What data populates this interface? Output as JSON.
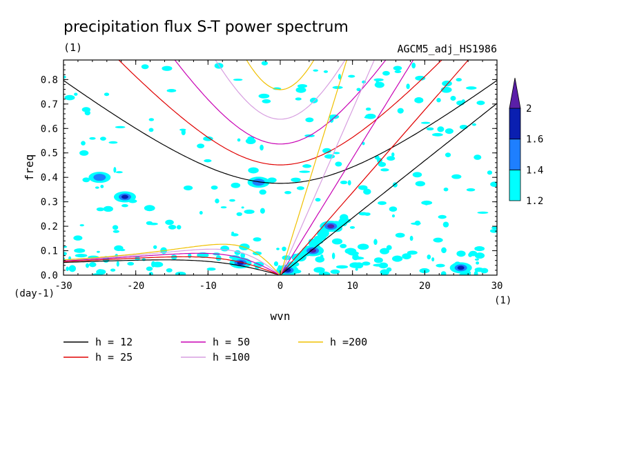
{
  "chart_data": {
    "type": "heatmap",
    "title": "precipitation flux S-T power spectrum",
    "subtitle_left": "(1)",
    "subtitle_right": "AGCM5_adj_HS1986",
    "xlabel": "wvn",
    "ylabel": "freq",
    "x_unit": "(1)",
    "y_unit": "(day-1)",
    "xlim": [
      -30,
      30
    ],
    "ylim": [
      0,
      0.88
    ],
    "xticks": [
      -30,
      -20,
      -10,
      0,
      10,
      20,
      30
    ],
    "xtick_labels": [
      "-30",
      "-20",
      "-10",
      "0",
      "10",
      "20",
      "30"
    ],
    "yticks": [
      0,
      0.1,
      0.2,
      0.3,
      0.4,
      0.5,
      0.6,
      0.7,
      0.8
    ],
    "ytick_labels": [
      "0.0",
      "0.1",
      "0.2",
      "0.3",
      "0.4",
      "0.5",
      "0.6",
      "0.7",
      "0.8"
    ],
    "colorbar": {
      "levels": [
        1.2,
        1.4,
        1.6,
        2
      ],
      "labels": [
        "1.2",
        "1.4",
        "1.6",
        "2"
      ],
      "colors": [
        "#00ffff",
        "#1e7fff",
        "#0a1fb0",
        "#5a1fa8"
      ],
      "extend": "max"
    },
    "dispersion_curves": [
      {
        "label": "h = 12",
        "h": 12,
        "color": "#000000"
      },
      {
        "label": "h = 25",
        "h": 25,
        "color": "#e00000"
      },
      {
        "label": "h = 50",
        "h": 50,
        "color": "#c800b4"
      },
      {
        "label": "h =100",
        "h": 100,
        "color": "#d79ee0"
      },
      {
        "label": "h =200",
        "h": 200,
        "color": "#f0c000"
      }
    ],
    "power_regions": [
      {
        "x": 4.5,
        "y": 0.1,
        "level": 2
      },
      {
        "x": 7,
        "y": 0.2,
        "level": 2
      },
      {
        "x": -5.5,
        "y": 0.05,
        "level": 1.6
      },
      {
        "x": -3,
        "y": 0.38,
        "level": 1.4
      },
      {
        "x": -25,
        "y": 0.4,
        "level": 1.4
      },
      {
        "x": -21.5,
        "y": 0.32,
        "level": 1.6
      },
      {
        "x": 25,
        "y": 0.03,
        "level": 1.6
      },
      {
        "x": 1,
        "y": 0.02,
        "level": 1.6
      }
    ]
  }
}
